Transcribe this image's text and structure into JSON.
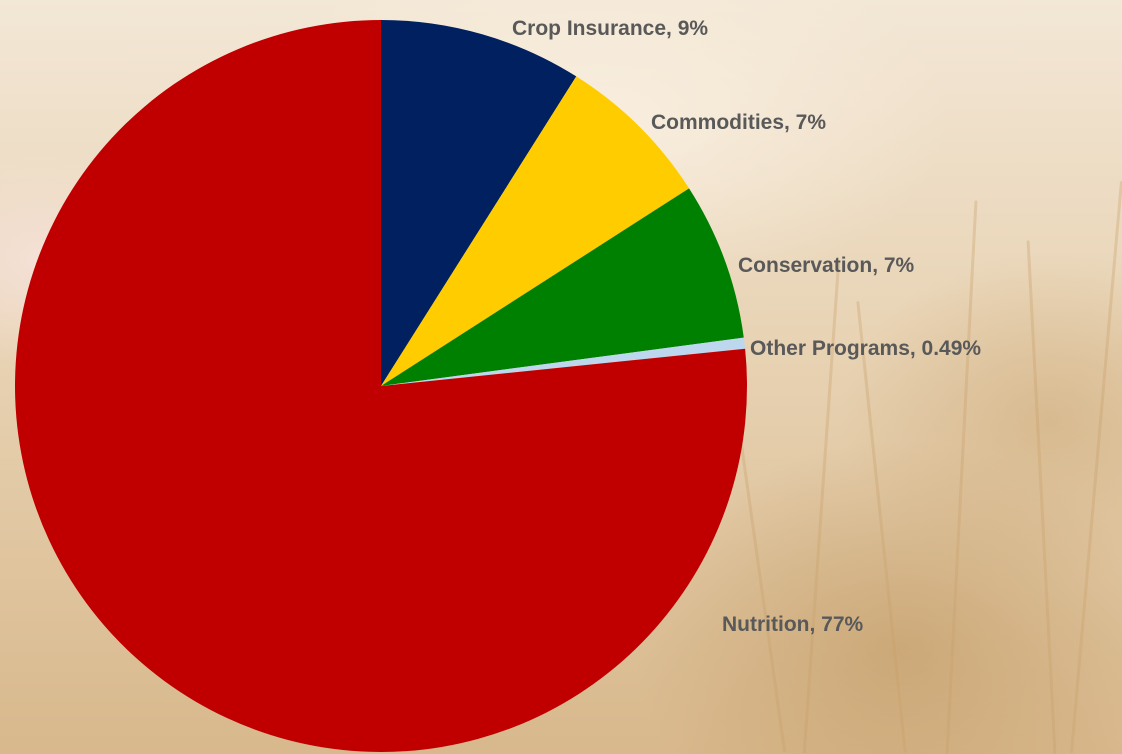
{
  "chart_data": {
    "type": "pie",
    "title": "",
    "slices": [
      {
        "label": "Crop Insurance",
        "value": 9,
        "display": "9%",
        "color": "#002060"
      },
      {
        "label": "Commodities",
        "value": 7,
        "display": "7%",
        "color": "#FFCC00"
      },
      {
        "label": "Conservation",
        "value": 7,
        "display": "7%",
        "color": "#008000"
      },
      {
        "label": "Other Programs",
        "value": 0.49,
        "display": "0.49%",
        "color": "#BDD7EE"
      },
      {
        "label": "Nutrition",
        "value": 77,
        "display": "77%",
        "color": "#C00000"
      }
    ],
    "start_angle": "12 o'clock",
    "direction": "clockwise",
    "legend": "none",
    "data_labels": "category name and percentage"
  },
  "colors": {
    "label_text": "#595959"
  }
}
